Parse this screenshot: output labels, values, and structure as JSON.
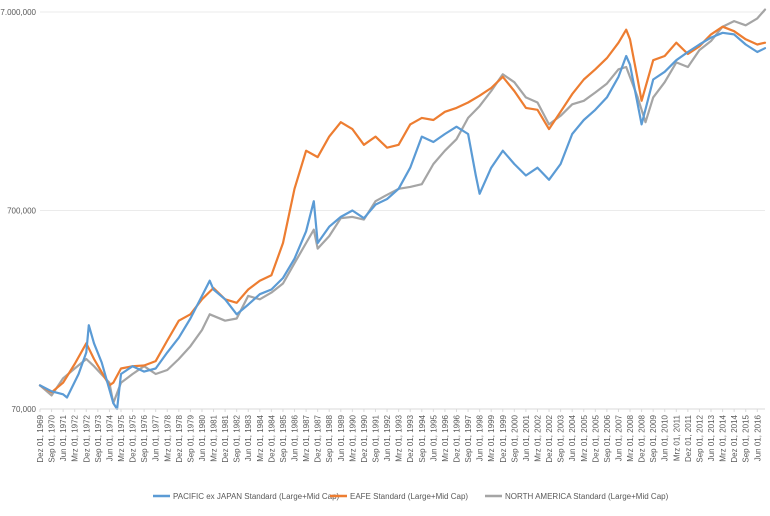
{
  "chart_data": {
    "type": "line",
    "title": "",
    "xlabel": "",
    "ylabel": "",
    "y_scale": "log",
    "ylim": [
      70000,
      7000000
    ],
    "y_ticks": [
      {
        "value": 70000,
        "label": "70,000"
      },
      {
        "value": 700000,
        "label": "700,000"
      },
      {
        "value": 7000000,
        "label": "7.000,000"
      }
    ],
    "x_range": [
      "1969-12",
      "2016-12"
    ],
    "x_tick_labels": [
      "Dez 01, 1969",
      "Sep 01, 1970",
      "Jun 01, 1971",
      "Mrz 01, 1972",
      "Dez 01, 1972",
      "Sep 01, 1973",
      "Jun 01, 1974",
      "Mrz 01, 1975",
      "Dez 01, 1975",
      "Sep 01, 1976",
      "Jun 01, 1977",
      "Mrz 01, 1978",
      "Dez 01, 1978",
      "Sep 01, 1979",
      "Jun 01, 1980",
      "Mrz 01, 1981",
      "Dez 01, 1981",
      "Sep 01, 1982",
      "Jun 01, 1983",
      "Mrz 01, 1984",
      "Dez 01, 1984",
      "Sep 01, 1985",
      "Jun 01, 1986",
      "Mrz 01, 1987",
      "Dez 01, 1987",
      "Sep 01, 1988",
      "Jun 01, 1989",
      "Mrz 01, 1990",
      "Dez 01, 1990",
      "Sep 01, 1991",
      "Jun 01, 1992",
      "Mrz 01, 1993",
      "Dez 01, 1993",
      "Sep 01, 1994",
      "Jun 01, 1995",
      "Mrz 01, 1996",
      "Dez 01, 1996",
      "Sep 01, 1997",
      "Jun 01, 1998",
      "Mrz 01, 1999",
      "Dez 01, 1999",
      "Sep 01, 2000",
      "Jun 01, 2001",
      "Mrz 01, 2002",
      "Dez 01, 2002",
      "Sep 01, 2003",
      "Jun 01, 2004",
      "Mrz 01, 2005",
      "Dez 01, 2005",
      "Sep 01, 2006",
      "Jun 01, 2007",
      "Mrz 01, 2008",
      "Dez 01, 2008",
      "Sep 01, 2009",
      "Jun 01, 2010",
      "Mrz 01, 2011",
      "Dez 01, 2011",
      "Sep 01, 2012",
      "Jun 01, 2013",
      "Mrz 01, 2014",
      "Dez 01, 2014",
      "Sep 01, 2015",
      "Jun 01, 2016"
    ],
    "grid": "horizontal",
    "legend_position": "bottom",
    "series": [
      {
        "name": "PACIFIC ex JAPAN Standard (Large+Mid Cap)",
        "color": "#5b9bd5",
        "points": [
          [
            "1969-12",
            92000
          ],
          [
            "1970-09",
            86000
          ],
          [
            "1971-06",
            83000
          ],
          [
            "1971-09",
            80000
          ],
          [
            "1972-06",
            105000
          ],
          [
            "1972-12",
            135000
          ],
          [
            "1973-02",
            185000
          ],
          [
            "1973-06",
            150000
          ],
          [
            "1973-12",
            120000
          ],
          [
            "1974-09",
            75000
          ],
          [
            "1974-12",
            70000
          ],
          [
            "1975-03",
            105000
          ],
          [
            "1975-12",
            115000
          ],
          [
            "1976-09",
            108000
          ],
          [
            "1977-06",
            112000
          ],
          [
            "1978-03",
            135000
          ],
          [
            "1978-12",
            160000
          ],
          [
            "1979-09",
            200000
          ],
          [
            "1980-06",
            260000
          ],
          [
            "1980-12",
            310000
          ],
          [
            "1981-03",
            280000
          ],
          [
            "1981-12",
            250000
          ],
          [
            "1982-09",
            210000
          ],
          [
            "1983-06",
            235000
          ],
          [
            "1984-03",
            265000
          ],
          [
            "1984-12",
            280000
          ],
          [
            "1985-09",
            320000
          ],
          [
            "1986-06",
            400000
          ],
          [
            "1987-03",
            550000
          ],
          [
            "1987-09",
            780000
          ],
          [
            "1987-12",
            480000
          ],
          [
            "1988-09",
            580000
          ],
          [
            "1989-06",
            650000
          ],
          [
            "1990-03",
            700000
          ],
          [
            "1990-12",
            640000
          ],
          [
            "1991-09",
            750000
          ],
          [
            "1992-06",
            800000
          ],
          [
            "1993-03",
            900000
          ],
          [
            "1993-12",
            1150000
          ],
          [
            "1994-09",
            1650000
          ],
          [
            "1995-06",
            1550000
          ],
          [
            "1996-03",
            1700000
          ],
          [
            "1996-12",
            1850000
          ],
          [
            "1997-09",
            1700000
          ],
          [
            "1998-03",
            1050000
          ],
          [
            "1998-06",
            850000
          ],
          [
            "1999-03",
            1150000
          ],
          [
            "1999-12",
            1400000
          ],
          [
            "2000-09",
            1200000
          ],
          [
            "2001-06",
            1050000
          ],
          [
            "2002-03",
            1150000
          ],
          [
            "2002-12",
            1000000
          ],
          [
            "2003-09",
            1200000
          ],
          [
            "2004-06",
            1700000
          ],
          [
            "2005-03",
            2000000
          ],
          [
            "2005-12",
            2250000
          ],
          [
            "2006-09",
            2600000
          ],
          [
            "2007-06",
            3300000
          ],
          [
            "2007-12",
            4200000
          ],
          [
            "2008-03",
            3800000
          ],
          [
            "2008-09",
            2400000
          ],
          [
            "2008-12",
            1900000
          ],
          [
            "2009-09",
            3200000
          ],
          [
            "2010-06",
            3500000
          ],
          [
            "2011-03",
            4000000
          ],
          [
            "2011-12",
            4400000
          ],
          [
            "2012-09",
            4800000
          ],
          [
            "2013-06",
            5200000
          ],
          [
            "2014-03",
            5500000
          ],
          [
            "2014-12",
            5400000
          ],
          [
            "2015-09",
            4800000
          ],
          [
            "2016-06",
            4400000
          ],
          [
            "2016-12",
            4600000
          ]
        ]
      },
      {
        "name": "EAFE Standard (Large+Mid Cap)",
        "color": "#ed7d31",
        "points": [
          [
            "1969-12",
            92000
          ],
          [
            "1970-09",
            85000
          ],
          [
            "1971-06",
            95000
          ],
          [
            "1972-03",
            118000
          ],
          [
            "1972-12",
            150000
          ],
          [
            "1973-06",
            125000
          ],
          [
            "1974-06",
            92000
          ],
          [
            "1974-09",
            95000
          ],
          [
            "1975-03",
            112000
          ],
          [
            "1975-12",
            115000
          ],
          [
            "1976-09",
            116000
          ],
          [
            "1977-06",
            122000
          ],
          [
            "1978-03",
            155000
          ],
          [
            "1978-12",
            195000
          ],
          [
            "1979-09",
            210000
          ],
          [
            "1980-06",
            250000
          ],
          [
            "1981-03",
            285000
          ],
          [
            "1981-12",
            250000
          ],
          [
            "1982-09",
            240000
          ],
          [
            "1983-06",
            280000
          ],
          [
            "1984-03",
            310000
          ],
          [
            "1984-12",
            330000
          ],
          [
            "1985-09",
            480000
          ],
          [
            "1986-06",
            900000
          ],
          [
            "1987-03",
            1400000
          ],
          [
            "1987-12",
            1300000
          ],
          [
            "1988-09",
            1650000
          ],
          [
            "1989-06",
            1950000
          ],
          [
            "1990-03",
            1800000
          ],
          [
            "1990-12",
            1500000
          ],
          [
            "1991-09",
            1650000
          ],
          [
            "1992-06",
            1450000
          ],
          [
            "1993-03",
            1500000
          ],
          [
            "1993-12",
            1900000
          ],
          [
            "1994-09",
            2050000
          ],
          [
            "1995-06",
            2000000
          ],
          [
            "1996-03",
            2200000
          ],
          [
            "1996-12",
            2300000
          ],
          [
            "1997-09",
            2450000
          ],
          [
            "1998-06",
            2650000
          ],
          [
            "1999-03",
            2900000
          ],
          [
            "1999-12",
            3300000
          ],
          [
            "2000-09",
            2800000
          ],
          [
            "2001-06",
            2300000
          ],
          [
            "2002-03",
            2250000
          ],
          [
            "2002-12",
            1800000
          ],
          [
            "2003-09",
            2200000
          ],
          [
            "2004-06",
            2700000
          ],
          [
            "2005-03",
            3200000
          ],
          [
            "2005-12",
            3600000
          ],
          [
            "2006-09",
            4100000
          ],
          [
            "2007-06",
            4900000
          ],
          [
            "2007-12",
            5700000
          ],
          [
            "2008-03",
            5100000
          ],
          [
            "2008-09",
            3200000
          ],
          [
            "2008-12",
            2500000
          ],
          [
            "2009-09",
            4000000
          ],
          [
            "2010-06",
            4200000
          ],
          [
            "2011-03",
            4900000
          ],
          [
            "2011-12",
            4300000
          ],
          [
            "2012-09",
            4700000
          ],
          [
            "2013-06",
            5400000
          ],
          [
            "2014-03",
            5900000
          ],
          [
            "2014-12",
            5600000
          ],
          [
            "2015-09",
            5100000
          ],
          [
            "2016-06",
            4800000
          ],
          [
            "2016-12",
            4900000
          ]
        ]
      },
      {
        "name": "NORTH AMERICA Standard (Large+Mid Cap)",
        "color": "#a5a5a5",
        "points": [
          [
            "1969-12",
            92000
          ],
          [
            "1970-09",
            82000
          ],
          [
            "1971-06",
            100000
          ],
          [
            "1972-03",
            112000
          ],
          [
            "1972-12",
            125000
          ],
          [
            "1973-06",
            115000
          ],
          [
            "1974-06",
            95000
          ],
          [
            "1974-09",
            75000
          ],
          [
            "1975-03",
            95000
          ],
          [
            "1975-12",
            105000
          ],
          [
            "1976-09",
            115000
          ],
          [
            "1977-06",
            105000
          ],
          [
            "1978-03",
            110000
          ],
          [
            "1978-12",
            125000
          ],
          [
            "1979-09",
            145000
          ],
          [
            "1980-06",
            175000
          ],
          [
            "1980-12",
            210000
          ],
          [
            "1981-12",
            195000
          ],
          [
            "1982-09",
            200000
          ],
          [
            "1983-06",
            260000
          ],
          [
            "1984-03",
            250000
          ],
          [
            "1984-12",
            270000
          ],
          [
            "1985-09",
            300000
          ],
          [
            "1986-06",
            380000
          ],
          [
            "1987-03",
            480000
          ],
          [
            "1987-09",
            560000
          ],
          [
            "1987-12",
            450000
          ],
          [
            "1988-09",
            520000
          ],
          [
            "1989-06",
            640000
          ],
          [
            "1990-03",
            650000
          ],
          [
            "1990-12",
            630000
          ],
          [
            "1991-09",
            780000
          ],
          [
            "1992-06",
            840000
          ],
          [
            "1993-03",
            900000
          ],
          [
            "1993-12",
            920000
          ],
          [
            "1994-09",
            950000
          ],
          [
            "1995-06",
            1200000
          ],
          [
            "1996-03",
            1400000
          ],
          [
            "1996-12",
            1600000
          ],
          [
            "1997-09",
            2050000
          ],
          [
            "1998-06",
            2350000
          ],
          [
            "1999-03",
            2800000
          ],
          [
            "1999-12",
            3400000
          ],
          [
            "2000-09",
            3100000
          ],
          [
            "2001-06",
            2600000
          ],
          [
            "2002-03",
            2450000
          ],
          [
            "2002-12",
            1900000
          ],
          [
            "2003-09",
            2100000
          ],
          [
            "2004-06",
            2400000
          ],
          [
            "2005-03",
            2500000
          ],
          [
            "2005-12",
            2750000
          ],
          [
            "2006-09",
            3050000
          ],
          [
            "2007-06",
            3600000
          ],
          [
            "2007-12",
            3700000
          ],
          [
            "2008-09",
            2600000
          ],
          [
            "2009-03",
            1950000
          ],
          [
            "2009-09",
            2600000
          ],
          [
            "2010-06",
            3100000
          ],
          [
            "2011-03",
            3900000
          ],
          [
            "2011-12",
            3700000
          ],
          [
            "2012-09",
            4500000
          ],
          [
            "2013-06",
            5000000
          ],
          [
            "2014-03",
            5900000
          ],
          [
            "2014-12",
            6300000
          ],
          [
            "2015-09",
            6000000
          ],
          [
            "2016-06",
            6500000
          ],
          [
            "2016-12",
            7200000
          ]
        ]
      }
    ]
  }
}
